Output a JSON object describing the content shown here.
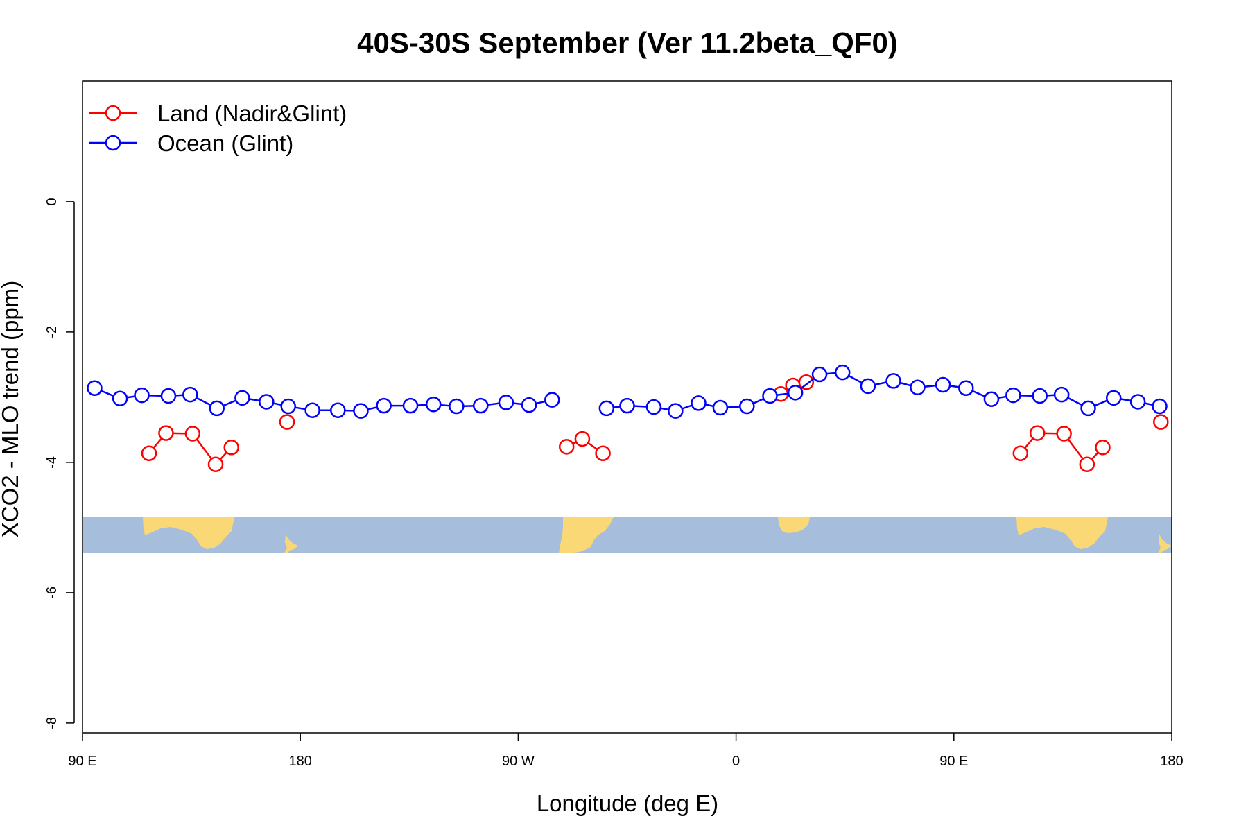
{
  "chart_data": {
    "type": "line",
    "title": "40S-30S September (Ver 11.2beta_QF0)",
    "xlabel": "Longitude (deg E)",
    "ylabel": "XCO2 - MLO trend (ppm)",
    "xlim": [
      90,
      540
    ],
    "ylim": [
      -8.15,
      1.85
    ],
    "x_ticks": [
      {
        "value": 90,
        "label": "90 E"
      },
      {
        "value": 180,
        "label": "180"
      },
      {
        "value": 270,
        "label": "90 W"
      },
      {
        "value": 360,
        "label": "0"
      },
      {
        "value": 450,
        "label": "90 E"
      },
      {
        "value": 540,
        "label": "180"
      }
    ],
    "y_ticks": [
      {
        "value": 0,
        "label": "0"
      },
      {
        "value": -2,
        "label": "-2"
      },
      {
        "value": -4,
        "label": "-4"
      },
      {
        "value": -6,
        "label": "-6"
      },
      {
        "value": -8,
        "label": "-8"
      }
    ],
    "legend": {
      "position": "top-left",
      "entries": [
        {
          "label": "Land (Nadir&Glint)",
          "color": "#ff0000"
        },
        {
          "label": "Ocean (Glint)",
          "color": "#0000ff"
        }
      ]
    },
    "map_strip": {
      "y_range": [
        -5.35,
        -4.8
      ],
      "ocean_color": "#a6bedb",
      "land_color": "#fbd876"
    },
    "series": [
      {
        "name": "Land (Nadir&Glint)",
        "color": "#ff0000",
        "segments": [
          [
            [
              117.5,
              -3.86
            ],
            [
              124.5,
              -3.55
            ],
            [
              135.5,
              -3.56
            ],
            [
              145,
              -4.03
            ],
            [
              151.5,
              -3.77
            ]
          ],
          [
            [
              174.5,
              -3.38
            ]
          ],
          [
            [
              290,
              -3.76
            ],
            [
              296.5,
              -3.64
            ],
            [
              305,
              -3.86
            ]
          ],
          [
            [
              378.5,
              -2.95
            ],
            [
              383.5,
              -2.82
            ],
            [
              389,
              -2.77
            ]
          ],
          [
            [
              477.5,
              -3.86
            ],
            [
              484.5,
              -3.55
            ],
            [
              495.5,
              -3.56
            ],
            [
              505,
              -4.03
            ],
            [
              511.5,
              -3.77
            ]
          ],
          [
            [
              535.5,
              -3.38
            ]
          ]
        ]
      },
      {
        "name": "Ocean (Glint)",
        "color": "#0000ff",
        "segments": [
          [
            [
              95,
              -2.86
            ],
            [
              105.5,
              -3.02
            ],
            [
              114.5,
              -2.97
            ],
            [
              125.5,
              -2.98
            ],
            [
              134.5,
              -2.96
            ],
            [
              145.5,
              -3.17
            ],
            [
              156,
              -3.01
            ],
            [
              166,
              -3.07
            ],
            [
              175,
              -3.14
            ],
            [
              185,
              -3.2
            ],
            [
              195.5,
              -3.2
            ],
            [
              205,
              -3.21
            ],
            [
              214.5,
              -3.13
            ],
            [
              225.5,
              -3.13
            ],
            [
              235,
              -3.11
            ],
            [
              244.5,
              -3.14
            ],
            [
              254.5,
              -3.13
            ],
            [
              265,
              -3.08
            ],
            [
              274.5,
              -3.12
            ],
            [
              284,
              -3.04
            ]
          ],
          [
            [
              306.5,
              -3.17
            ],
            [
              315,
              -3.13
            ],
            [
              326,
              -3.15
            ],
            [
              335,
              -3.21
            ],
            [
              344.5,
              -3.09
            ],
            [
              353.5,
              -3.16
            ],
            [
              364.5,
              -3.14
            ],
            [
              374,
              -2.98
            ],
            [
              384.5,
              -2.93
            ],
            [
              394.5,
              -2.65
            ],
            [
              404,
              -2.62
            ],
            [
              414.5,
              -2.83
            ],
            [
              425,
              -2.75
            ],
            [
              435,
              -2.85
            ],
            [
              445.5,
              -2.81
            ],
            [
              455,
              -2.86
            ],
            [
              465.5,
              -3.03
            ],
            [
              474.5,
              -2.97
            ],
            [
              485.5,
              -2.98
            ],
            [
              494.5,
              -2.96
            ],
            [
              505.5,
              -3.17
            ],
            [
              516,
              -3.01
            ],
            [
              526,
              -3.07
            ],
            [
              535,
              -3.14
            ]
          ]
        ]
      }
    ]
  }
}
